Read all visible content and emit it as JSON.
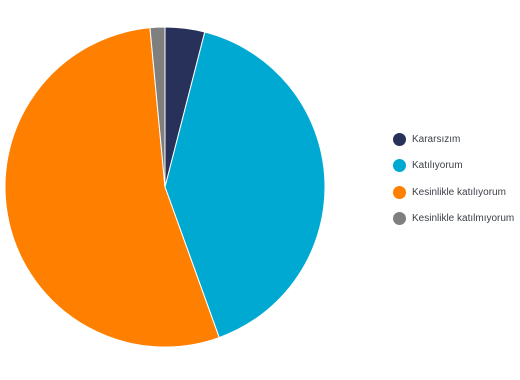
{
  "chart_data": {
    "type": "pie",
    "title": "",
    "legend_position": "right",
    "slices": [
      {
        "label": "Kararsızım",
        "value": 4.0,
        "color": "#283159"
      },
      {
        "label": "Katılıyorum",
        "value": 40.5,
        "color": "#00a9d2"
      },
      {
        "label": "Kesinlikle katılıyorum",
        "value": 54.0,
        "color": "#ff7f00"
      },
      {
        "label": "Kesinlikle katılmıyorum",
        "value": 1.5,
        "color": "#7f7f7f"
      }
    ]
  }
}
